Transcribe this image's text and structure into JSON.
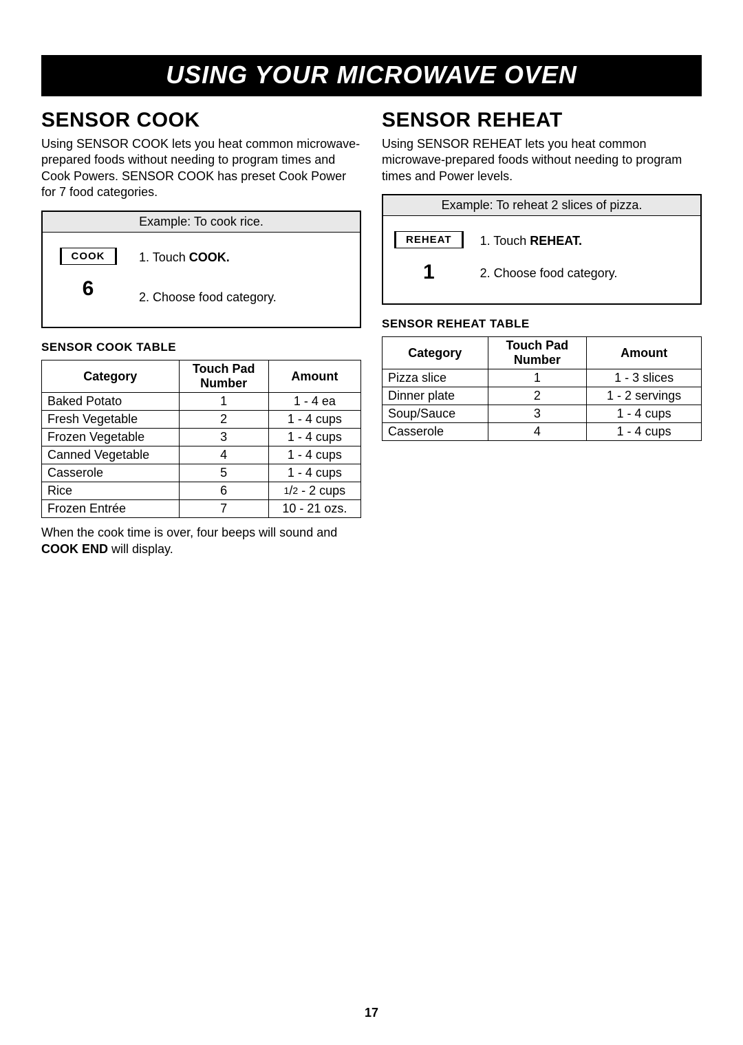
{
  "banner": "USING YOUR MICROWAVE OVEN",
  "page_number": "17",
  "cook": {
    "heading": "SENSOR COOK",
    "intro": "Using SENSOR COOK lets you heat common microwave-prepared foods without needing to program times and Cook Powers. SENSOR COOK has preset Cook Power for 7 food categories.",
    "example_title": "Example: To cook rice.",
    "button_label": "COOK",
    "display_number": "6",
    "step1_pre": "1. Touch ",
    "step1_bold": "COOK.",
    "step2": "2. Choose food category.",
    "table_label": "SENSOR COOK TABLE",
    "columns": [
      "Category",
      "Touch Pad Number",
      "Amount"
    ],
    "rows": [
      [
        "Baked Potato",
        "1",
        "1 - 4 ea"
      ],
      [
        "Fresh Vegetable",
        "2",
        "1 - 4 cups"
      ],
      [
        "Frozen Vegetable",
        "3",
        "1 - 4 cups"
      ],
      [
        "Canned Vegetable",
        "4",
        "1 - 4 cups"
      ],
      [
        "Casserole",
        "5",
        "1 - 4 cups"
      ],
      [
        "Rice",
        "6",
        "1/2 - 2 cups"
      ],
      [
        "Frozen Entrée",
        "7",
        "10 - 21 ozs."
      ]
    ],
    "note_pre": "When the cook time is over, four beeps will sound and ",
    "note_bold": "COOK END",
    "note_post": " will display."
  },
  "reheat": {
    "heading": "SENSOR REHEAT",
    "intro": "Using SENSOR REHEAT lets you heat common microwave-prepared foods without needing to program times and Power levels.",
    "example_title": "Example: To reheat 2 slices of pizza.",
    "button_label": "REHEAT",
    "display_number": "1",
    "step1_pre": "1. Touch ",
    "step1_bold": "REHEAT.",
    "step2": "2. Choose food category.",
    "table_label": "SENSOR REHEAT TABLE",
    "columns": [
      "Category",
      "Touch Pad Number",
      "Amount"
    ],
    "rows": [
      [
        "Pizza slice",
        "1",
        "1 - 3 slices"
      ],
      [
        "Dinner plate",
        "2",
        "1 - 2 servings"
      ],
      [
        "Soup/Sauce",
        "3",
        "1 - 4 cups"
      ],
      [
        "Casserole",
        "4",
        "1 - 4 cups"
      ]
    ]
  }
}
